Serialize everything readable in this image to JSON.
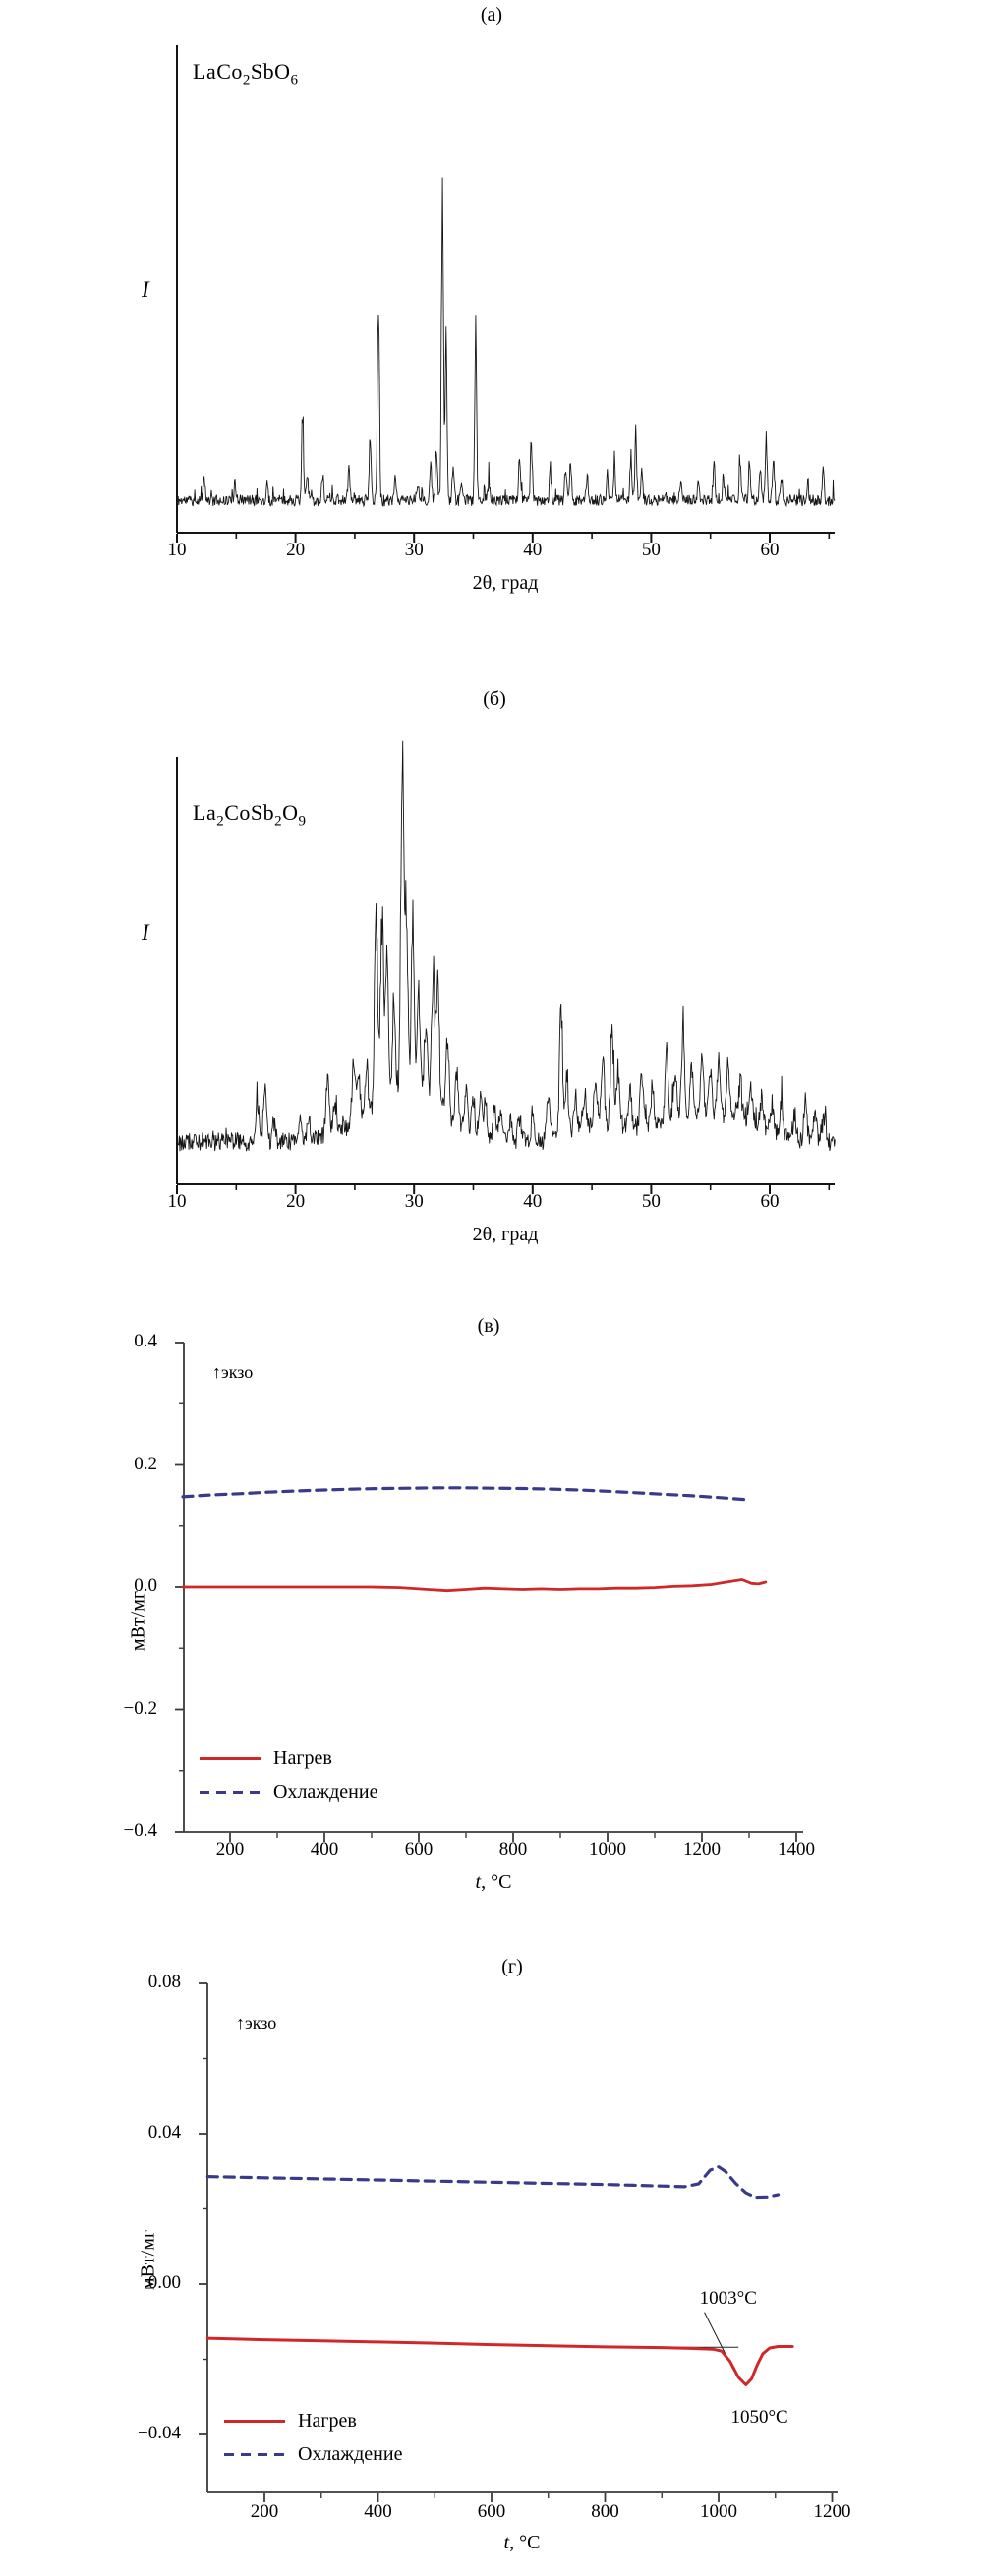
{
  "chart_data": [
    {
      "type": "line",
      "panel": "a",
      "title": "(а)",
      "sample_label": "LaCo2SbO6",
      "formula_parts": [
        [
          "t",
          "LaCo"
        ],
        [
          "s",
          "2"
        ],
        [
          "t",
          "SbO"
        ],
        [
          "s",
          "6"
        ]
      ],
      "xlabel": "2θ, град",
      "ylabel": "I",
      "xlim": [
        10,
        65.5
      ],
      "xticks": [
        10,
        20,
        30,
        40,
        50,
        60
      ],
      "xminor": [
        15,
        25,
        35,
        45,
        55,
        65
      ],
      "grid": false,
      "trace_color": "#161616",
      "noise_base": 0.02,
      "noise": 0.017,
      "spike_p": 0.05,
      "spike": 0.05,
      "sigma": 0.08,
      "seed": 11,
      "humps": [],
      "peaks": [
        [
          12.3,
          0.07
        ],
        [
          14.9,
          0.05
        ],
        [
          17.6,
          0.04
        ],
        [
          20.6,
          0.27
        ],
        [
          21.0,
          0.08
        ],
        [
          22.3,
          0.09
        ],
        [
          24.5,
          0.1
        ],
        [
          26.3,
          0.2
        ],
        [
          27.0,
          0.64
        ],
        [
          28.4,
          0.06
        ],
        [
          30.3,
          0.06
        ],
        [
          31.4,
          0.1
        ],
        [
          31.9,
          0.16
        ],
        [
          32.4,
          1.0
        ],
        [
          32.7,
          0.48
        ],
        [
          33.3,
          0.09
        ],
        [
          34.0,
          0.07
        ],
        [
          35.2,
          0.49
        ],
        [
          36.3,
          0.06
        ],
        [
          38.9,
          0.12
        ],
        [
          39.9,
          0.19
        ],
        [
          41.5,
          0.1
        ],
        [
          42.8,
          0.12
        ],
        [
          43.2,
          0.11
        ],
        [
          44.6,
          0.07
        ],
        [
          46.3,
          0.08
        ],
        [
          46.9,
          0.1
        ],
        [
          48.3,
          0.13
        ],
        [
          48.7,
          0.22
        ],
        [
          49.2,
          0.09
        ],
        [
          52.5,
          0.07
        ],
        [
          54.0,
          0.06
        ],
        [
          55.3,
          0.12
        ],
        [
          56.1,
          0.07
        ],
        [
          57.5,
          0.12
        ],
        [
          58.3,
          0.13
        ],
        [
          59.2,
          0.1
        ],
        [
          59.7,
          0.18
        ],
        [
          60.3,
          0.12
        ],
        [
          61.0,
          0.07
        ],
        [
          63.2,
          0.06
        ],
        [
          64.5,
          0.1
        ]
      ]
    },
    {
      "type": "line",
      "panel": "б",
      "title": "(б)",
      "sample_label": "La2CoSb2O9",
      "formula_parts": [
        [
          "t",
          "La"
        ],
        [
          "s",
          "2"
        ],
        [
          "t",
          "CoSb"
        ],
        [
          "s",
          "2"
        ],
        [
          "t",
          "O"
        ],
        [
          "s",
          "9"
        ]
      ],
      "xlabel": "2θ, град",
      "ylabel": "I",
      "xlim": [
        10,
        65.5
      ],
      "xticks": [
        10,
        20,
        30,
        40,
        50,
        60
      ],
      "xminor": [
        15,
        25,
        35,
        45,
        55,
        65
      ],
      "grid": false,
      "trace_color": "#161616",
      "noise_base": 0.03,
      "noise": 0.028,
      "spike_p": 0.08,
      "spike": 0.05,
      "sigma": 0.13,
      "seed": 29,
      "humps": [
        [
          27.8,
          2.8,
          0.1
        ],
        [
          31.5,
          2.0,
          0.07
        ],
        [
          46.0,
          2.0,
          0.05
        ],
        [
          53.0,
          3.0,
          0.07
        ],
        [
          58.0,
          2.2,
          0.05
        ]
      ],
      "peaks": [
        [
          16.8,
          0.12
        ],
        [
          17.4,
          0.15
        ],
        [
          18.2,
          0.06
        ],
        [
          20.4,
          0.08
        ],
        [
          21.1,
          0.07
        ],
        [
          22.7,
          0.18
        ],
        [
          23.3,
          0.1
        ],
        [
          24.9,
          0.18
        ],
        [
          25.3,
          0.15
        ],
        [
          26.0,
          0.12
        ],
        [
          26.8,
          0.62
        ],
        [
          27.3,
          0.57
        ],
        [
          27.7,
          0.45
        ],
        [
          28.3,
          0.3
        ],
        [
          29.0,
          1.0
        ],
        [
          29.35,
          0.6
        ],
        [
          29.9,
          0.55
        ],
        [
          30.4,
          0.35
        ],
        [
          31.0,
          0.25
        ],
        [
          31.6,
          0.42
        ],
        [
          32.0,
          0.4
        ],
        [
          32.8,
          0.25
        ],
        [
          33.6,
          0.18
        ],
        [
          34.4,
          0.15
        ],
        [
          35.0,
          0.12
        ],
        [
          35.6,
          0.14
        ],
        [
          36.0,
          0.12
        ],
        [
          36.8,
          0.1
        ],
        [
          37.3,
          0.1
        ],
        [
          38.1,
          0.08
        ],
        [
          38.9,
          0.08
        ],
        [
          40.0,
          0.08
        ],
        [
          41.3,
          0.15
        ],
        [
          42.4,
          0.42
        ],
        [
          42.9,
          0.2
        ],
        [
          43.6,
          0.12
        ],
        [
          44.4,
          0.1
        ],
        [
          45.3,
          0.12
        ],
        [
          45.9,
          0.22
        ],
        [
          46.7,
          0.3
        ],
        [
          47.2,
          0.18
        ],
        [
          48.2,
          0.12
        ],
        [
          49.2,
          0.18
        ],
        [
          50.1,
          0.12
        ],
        [
          51.3,
          0.22
        ],
        [
          52.0,
          0.15
        ],
        [
          52.7,
          0.28
        ],
        [
          53.4,
          0.18
        ],
        [
          54.3,
          0.2
        ],
        [
          55.0,
          0.14
        ],
        [
          55.7,
          0.18
        ],
        [
          56.5,
          0.15
        ],
        [
          57.5,
          0.12
        ],
        [
          58.4,
          0.1
        ],
        [
          59.3,
          0.09
        ],
        [
          60.2,
          0.08
        ],
        [
          61.0,
          0.1
        ],
        [
          62.1,
          0.08
        ],
        [
          63.0,
          0.12
        ],
        [
          63.8,
          0.08
        ],
        [
          64.6,
          0.09
        ]
      ]
    },
    {
      "type": "line",
      "panel": "в",
      "title": "(в)",
      "exo": "↑экзо",
      "ylabel": "мВт/мг",
      "xlabel": "t, °C",
      "xlabel_parts": [
        [
          "i",
          "t"
        ],
        [
          "t",
          ", °C"
        ]
      ],
      "xlim": [
        100,
        1415
      ],
      "ylim": [
        -0.4,
        0.4
      ],
      "xticks": [
        200,
        400,
        600,
        800,
        1000,
        1200,
        1400
      ],
      "xminor": [
        300,
        500,
        700,
        900,
        1100,
        1300
      ],
      "yticks": [
        0.4,
        0.2,
        0.0,
        -0.2,
        -0.4
      ],
      "ytick_labels": [
        "0.4",
        "0.2",
        "0.0",
        "−0.2",
        "−0.4"
      ],
      "yminor": [
        0.3,
        0.1,
        -0.1,
        -0.3
      ],
      "grid": false,
      "legend_position": "lower-left",
      "legend": [
        {
          "label": "Нагрев",
          "color": "#d02828",
          "dash": false
        },
        {
          "label": "Охлаждение",
          "color": "#3a3a8c",
          "dash": true
        }
      ],
      "series": [
        {
          "name": "Нагрев",
          "color": "#d02828",
          "dash": null,
          "width": 2.8,
          "points": [
            [
              100,
              0.0
            ],
            [
              200,
              0.0
            ],
            [
              300,
              0.0
            ],
            [
              400,
              0.0
            ],
            [
              500,
              0.0
            ],
            [
              560,
              -0.001
            ],
            [
              620,
              -0.004
            ],
            [
              660,
              -0.006
            ],
            [
              700,
              -0.004
            ],
            [
              740,
              -0.002
            ],
            [
              780,
              -0.003
            ],
            [
              820,
              -0.004
            ],
            [
              860,
              -0.003
            ],
            [
              900,
              -0.004
            ],
            [
              940,
              -0.003
            ],
            [
              980,
              -0.003
            ],
            [
              1020,
              -0.002
            ],
            [
              1060,
              -0.002
            ],
            [
              1100,
              -0.001
            ],
            [
              1140,
              0.001
            ],
            [
              1180,
              0.002
            ],
            [
              1220,
              0.004
            ],
            [
              1260,
              0.009
            ],
            [
              1285,
              0.012
            ],
            [
              1305,
              0.006
            ],
            [
              1320,
              0.005
            ],
            [
              1335,
              0.008
            ]
          ]
        },
        {
          "name": "Охлаждение",
          "color": "#3a3a8c",
          "dash": "10 7",
          "width": 3.2,
          "points": [
            [
              100,
              0.148
            ],
            [
              160,
              0.151
            ],
            [
              220,
              0.153
            ],
            [
              280,
              0.1555
            ],
            [
              340,
              0.1575
            ],
            [
              400,
              0.159
            ],
            [
              460,
              0.1605
            ],
            [
              520,
              0.1615
            ],
            [
              580,
              0.162
            ],
            [
              640,
              0.1625
            ],
            [
              700,
              0.1625
            ],
            [
              760,
              0.162
            ],
            [
              820,
              0.1615
            ],
            [
              880,
              0.1605
            ],
            [
              940,
              0.159
            ],
            [
              1000,
              0.157
            ],
            [
              1060,
              0.1545
            ],
            [
              1120,
              0.152
            ],
            [
              1180,
              0.1495
            ],
            [
              1240,
              0.1465
            ],
            [
              1290,
              0.1435
            ]
          ]
        }
      ]
    },
    {
      "type": "line",
      "panel": "г",
      "title": "(г)",
      "exo": "↑экзо",
      "ylabel": "мВт/мг",
      "xlabel": "t, °C",
      "xlabel_parts": [
        [
          "i",
          "t"
        ],
        [
          "t",
          ", °C"
        ]
      ],
      "xlim": [
        100,
        1210
      ],
      "ylim": [
        -0.055,
        0.08
      ],
      "xticks": [
        200,
        400,
        600,
        800,
        1000,
        1200
      ],
      "xminor": [
        300,
        500,
        700,
        900,
        1100
      ],
      "yticks": [
        0.08,
        0.04,
        0.0,
        -0.04
      ],
      "ytick_labels": [
        "0.08",
        "0.04",
        "0.00",
        "−0.04"
      ],
      "yminor": [
        0.06,
        0.02,
        -0.02
      ],
      "grid": false,
      "legend_position": "lower-left",
      "legend": [
        {
          "label": "Нагрев",
          "color": "#d02828",
          "dash": false
        },
        {
          "label": "Охлаждение",
          "color": "#3a3a8c",
          "dash": true
        }
      ],
      "annotations": [
        {
          "text": "1003°C",
          "t": 1017,
          "value": -0.004
        },
        {
          "text": "1050°C",
          "t": 1072,
          "value": -0.0355
        }
      ],
      "annotation_lines": [
        {
          "points": [
            [
              845,
              -0.0168
            ],
            [
              1035,
              -0.0168
            ]
          ]
        },
        {
          "points": [
            [
              975,
              -0.0075
            ],
            [
              1025,
              -0.0225
            ]
          ]
        }
      ],
      "series": [
        {
          "name": "Нагрев",
          "color": "#d02828",
          "dash": null,
          "width": 3,
          "points": [
            [
              100,
              -0.0144
            ],
            [
              200,
              -0.0148
            ],
            [
              300,
              -0.0151
            ],
            [
              400,
              -0.0154
            ],
            [
              500,
              -0.0157
            ],
            [
              600,
              -0.0161
            ],
            [
              700,
              -0.0164
            ],
            [
              800,
              -0.0167
            ],
            [
              900,
              -0.0169
            ],
            [
              950,
              -0.0171
            ],
            [
              990,
              -0.0173
            ],
            [
              1005,
              -0.0178
            ],
            [
              1020,
              -0.0205
            ],
            [
              1035,
              -0.0248
            ],
            [
              1048,
              -0.0268
            ],
            [
              1058,
              -0.0252
            ],
            [
              1068,
              -0.0215
            ],
            [
              1078,
              -0.0185
            ],
            [
              1090,
              -0.017
            ],
            [
              1105,
              -0.0166
            ],
            [
              1130,
              -0.0166
            ]
          ]
        },
        {
          "name": "Охлаждение",
          "color": "#3a3a8c",
          "dash": "10 7",
          "width": 3.2,
          "points": [
            [
              100,
              0.0286
            ],
            [
              200,
              0.0283
            ],
            [
              300,
              0.028
            ],
            [
              400,
              0.0277
            ],
            [
              500,
              0.0274
            ],
            [
              600,
              0.0271
            ],
            [
              700,
              0.0268
            ],
            [
              800,
              0.0265
            ],
            [
              850,
              0.0263
            ],
            [
              900,
              0.0261
            ],
            [
              940,
              0.0259
            ],
            [
              965,
              0.0267
            ],
            [
              985,
              0.0303
            ],
            [
              1000,
              0.0312
            ],
            [
              1012,
              0.03
            ],
            [
              1030,
              0.0268
            ],
            [
              1048,
              0.0243
            ],
            [
              1065,
              0.0231
            ],
            [
              1085,
              0.0232
            ],
            [
              1105,
              0.0238
            ]
          ]
        }
      ]
    }
  ]
}
